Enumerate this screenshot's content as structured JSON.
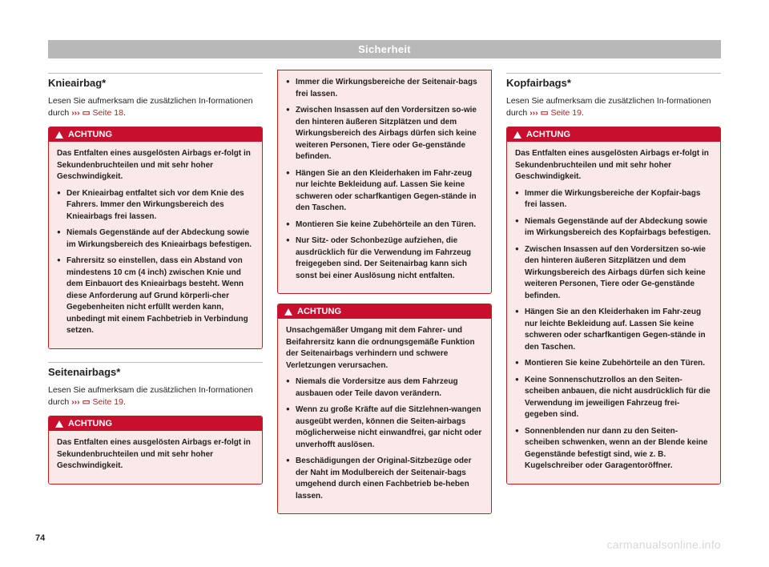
{
  "colors": {
    "header_bg": "#b8b8b8",
    "accent": "#c8102e",
    "box_border": "#b22",
    "box_bg": "#fbe9e9",
    "text": "#222",
    "watermark": "#d8d8d8"
  },
  "header": "Sicherheit",
  "page_number": "74",
  "watermark": "carmanualsonline.info",
  "col1": {
    "s1_title": "Knieairbag*",
    "s1_intro_a": "Lesen Sie aufmerksam die zusätzlichen In-formationen durch ",
    "s1_intro_b": "››› ",
    "s1_intro_c": "Seite 18",
    "box1_title": "ACHTUNG",
    "box1_p": "Das Entfalten eines ausgelösten Airbags er-folgt in Sekundenbruchteilen und mit sehr hoher Geschwindigkeit.",
    "box1_li1": "Der Knieairbag entfaltet sich vor dem Knie des Fahrers. Immer den Wirkungsbereich des Knieairbags frei lassen.",
    "box1_li2": "Niemals Gegenstände auf der Abdeckung sowie im Wirkungsbereich des Knieairbags befestigen.",
    "box1_li3": "Fahrersitz so einstellen, dass ein Abstand von mindestens 10 cm (4 inch) zwischen Knie und dem Einbauort des Knieairbags besteht. Wenn diese Anforderung auf Grund körperli-cher Gegebenheiten nicht erfüllt werden kann, unbedingt mit einem Fachbetrieb in Verbindung setzen.",
    "s2_title": "Seitenairbags*",
    "s2_intro_a": "Lesen Sie aufmerksam die zusätzlichen In-formationen durch ",
    "s2_intro_b": "››› ",
    "s2_intro_c": "Seite 19",
    "box2_title": "ACHTUNG",
    "box2_p": "Das Entfalten eines ausgelösten Airbags er-folgt in Sekundenbruchteilen und mit sehr hoher Geschwindigkeit."
  },
  "col2": {
    "cont_li1": "Immer die Wirkungsbereiche der Seitenair-bags frei lassen.",
    "cont_li2": "Zwischen Insassen auf den Vordersitzen so-wie den hinteren äußeren Sitzplätzen und dem Wirkungsbereich des Airbags dürfen sich keine weiteren Personen, Tiere oder Ge-genstände befinden.",
    "cont_li3": "Hängen Sie an den Kleiderhaken im Fahr-zeug nur leichte Bekleidung auf. Lassen Sie keine schweren oder scharfkantigen Gegen-stände in den Taschen.",
    "cont_li4": "Montieren Sie keine Zubehörteile an den Türen.",
    "cont_li5": "Nur Sitz- oder Schonbezüge aufziehen, die ausdrücklich für die Verwendung im Fahrzeug freigegeben sind. Der Seitenairbag kann sich sonst bei einer Auslösung nicht entfalten.",
    "box3_title": "ACHTUNG",
    "box3_p": "Unsachgemäßer Umgang mit dem Fahrer- und Beifahrersitz kann die ordnungsgemäße Funktion der Seitenairbags verhindern und schwere Verletzungen verursachen.",
    "box3_li1": "Niemals die Vordersitze aus dem Fahrzeug ausbauen oder Teile davon verändern.",
    "box3_li2": "Wenn zu große Kräfte auf die Sitzlehnen-wangen ausgeübt werden, können die Seiten-airbags möglicherweise nicht einwandfrei, gar nicht oder unverhofft auslösen.",
    "box3_li3": "Beschädigungen der Original-Sitzbezüge oder der Naht im Modulbereich der Seitenair-bags umgehend durch einen Fachbetrieb be-heben lassen."
  },
  "col3": {
    "s3_title": "Kopfairbags*",
    "s3_intro_a": "Lesen Sie aufmerksam die zusätzlichen In-formationen durch ",
    "s3_intro_b": "››› ",
    "s3_intro_c": "Seite 19",
    "box4_title": "ACHTUNG",
    "box4_p": "Das Entfalten eines ausgelösten Airbags er-folgt in Sekundenbruchteilen und mit sehr hoher Geschwindigkeit.",
    "box4_li1": "Immer die Wirkungsbereiche der Kopfair-bags frei lassen.",
    "box4_li2": "Niemals Gegenstände auf der Abdeckung sowie im Wirkungsbereich des Kopfairbags befestigen.",
    "box4_li3": "Zwischen Insassen auf den Vordersitzen so-wie den hinteren äußeren Sitzplätzen und dem Wirkungsbereich des Airbags dürfen sich keine weiteren Personen, Tiere oder Ge-genstände befinden.",
    "box4_li4": "Hängen Sie an den Kleiderhaken im Fahr-zeug nur leichte Bekleidung auf. Lassen Sie keine schweren oder scharfkantigen Gegen-stände in den Taschen.",
    "box4_li5": "Montieren Sie keine Zubehörteile an den Türen.",
    "box4_li6": "Keine Sonnenschutzrollos an den Seiten-scheiben anbauen, die nicht ausdrücklich für die Verwendung im jeweiligen Fahrzeug frei-gegeben sind.",
    "box4_li7": "Sonnenblenden nur dann zu den Seiten-scheiben schwenken, wenn an der Blende keine Gegenstände befestigt sind, wie z. B. Kugelschreiber oder Garagentoröffner."
  }
}
